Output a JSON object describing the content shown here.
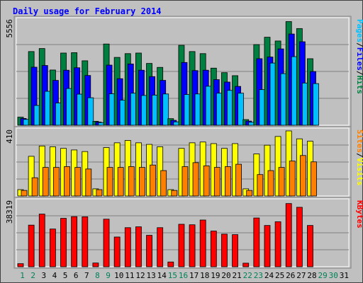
{
  "chart_data": {
    "type": "bar",
    "title": "Daily usage for February 2014",
    "days": [
      "1",
      "2",
      "3",
      "4",
      "5",
      "6",
      "7",
      "8",
      "9",
      "10",
      "11",
      "12",
      "13",
      "14",
      "15",
      "16",
      "17",
      "18",
      "19",
      "20",
      "21",
      "22",
      "23",
      "24",
      "25",
      "26",
      "27",
      "28",
      "29",
      "30",
      "31"
    ],
    "weekend_days": [
      1,
      2,
      8,
      9,
      15,
      16,
      22,
      23,
      29,
      30
    ],
    "future_days": [
      29,
      30,
      31
    ],
    "panels": [
      {
        "id": "hits",
        "max_label": "5556",
        "ymax": 5556,
        "axis_labels": [
          "Pages",
          "/",
          "Files",
          "/",
          "Hits"
        ],
        "axis_colors": [
          "#00c0ff",
          "#000000",
          "#0000ff",
          "#000000",
          "#008040"
        ],
        "series": [
          {
            "name": "Hits",
            "color": "#008040",
            "values": [
              430,
              3910,
              4070,
              2930,
              3830,
              3850,
              3420,
              210,
              4310,
              3600,
              3800,
              3830,
              3280,
              3070,
              350,
              4240,
              3910,
              3800,
              3030,
              2790,
              2630,
              300,
              4280,
              4670,
              4470,
              5500,
              5130,
              3530
            ]
          },
          {
            "name": "Files",
            "color": "#0000ff",
            "values": [
              360,
              3080,
              3170,
              2380,
              2920,
              3050,
              2640,
              170,
              3190,
              2470,
              3250,
              2920,
              2580,
              2380,
              260,
              3330,
              2900,
              2920,
              2420,
              2290,
              2060,
              220,
              3530,
              3620,
              4050,
              4840,
              4430,
              2850
            ]
          },
          {
            "name": "Pages",
            "color": "#00c0ff",
            "values": [
              310,
              1050,
              1800,
              1180,
              1950,
              1650,
              1460,
              140,
              1670,
              1330,
              1700,
              1580,
              1600,
              1660,
              180,
              1630,
              1660,
              2070,
              1700,
              1850,
              1700,
              160,
              1890,
              3300,
              2740,
              3640,
              2240,
              2210
            ]
          }
        ]
      },
      {
        "id": "visits",
        "max_label": "410",
        "ymax": 410,
        "axis_labels": [
          "Sites",
          "/",
          "Visits"
        ],
        "axis_colors": [
          "#ff8000",
          "#000000",
          "#ffff00"
        ],
        "series": [
          {
            "name": "Visits",
            "color": "#ffff00",
            "values": [
              40,
              250,
              315,
              310,
              300,
              290,
              280,
              45,
              305,
              335,
              350,
              335,
              325,
              310,
              40,
              300,
              335,
              340,
              330,
              300,
              330,
              45,
              265,
              320,
              375,
              410,
              360,
              345
            ]
          },
          {
            "name": "Sites",
            "color": "#ff8000",
            "values": [
              35,
              115,
              180,
              180,
              185,
              180,
              170,
              40,
              180,
              180,
              185,
              180,
              195,
              160,
              35,
              185,
              210,
              190,
              180,
              185,
              200,
              35,
              135,
              160,
              180,
              220,
              255,
              215
            ]
          }
        ]
      },
      {
        "id": "kbytes",
        "max_label": "38319",
        "ymax": 38319,
        "axis_labels": [
          "KBytes"
        ],
        "axis_colors": [
          "#ff0000"
        ],
        "series": [
          {
            "name": "KBytes",
            "color": "#ff0000",
            "values": [
              1800,
              24500,
              31000,
              22200,
              28500,
              29500,
              29400,
              2200,
              28000,
              17500,
              23000,
              23500,
              18500,
              23000,
              2800,
              25000,
              24700,
              27500,
              21000,
              19200,
              18900,
              2100,
              28700,
              24300,
              26500,
              37200,
              35000,
              24300
            ]
          }
        ]
      }
    ]
  }
}
